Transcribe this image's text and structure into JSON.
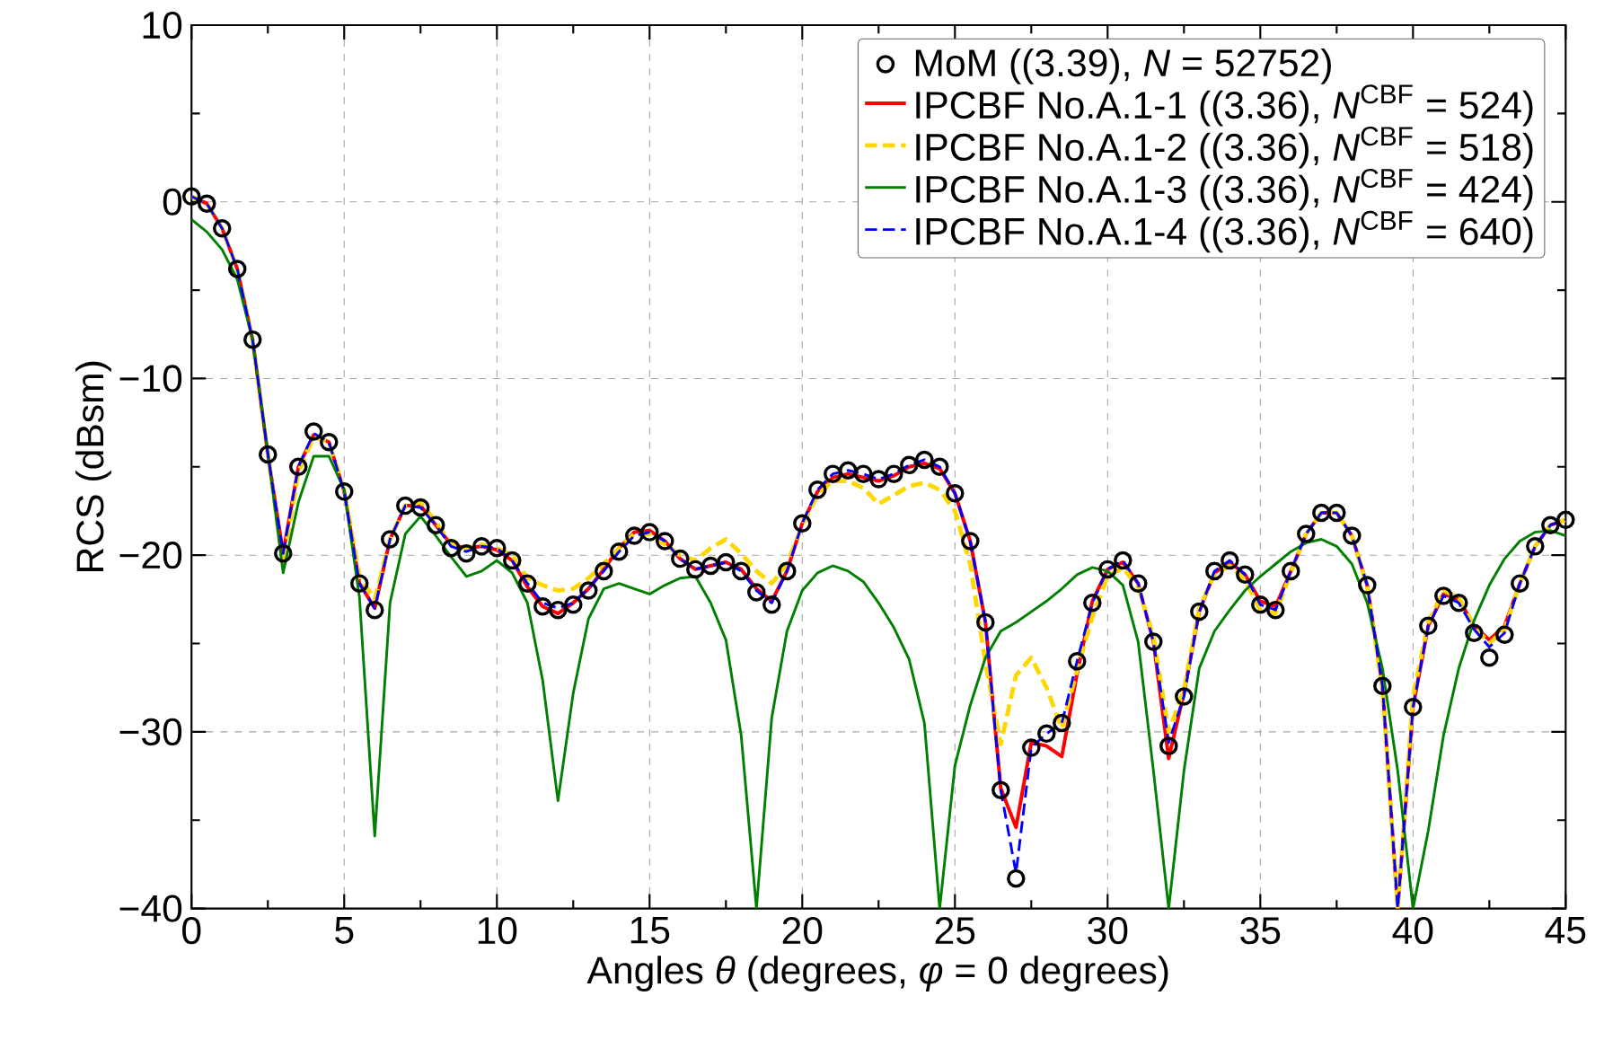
{
  "chart_data": {
    "type": "line",
    "xlabel": "Angles *θ* (degrees, *φ* = 0 degrees)",
    "ylabel": "RCS (dBsm)",
    "x": [
      0,
      0.5,
      1,
      1.5,
      2,
      2.5,
      3,
      3.5,
      4,
      4.5,
      5,
      5.5,
      6,
      6.5,
      7,
      7.5,
      8,
      8.5,
      9,
      9.5,
      10,
      10.5,
      11,
      11.5,
      12,
      12.5,
      13,
      13.5,
      14,
      14.5,
      15,
      15.5,
      16,
      16.5,
      17,
      17.5,
      18,
      18.5,
      19,
      19.5,
      20,
      20.5,
      21,
      21.5,
      22,
      22.5,
      23,
      23.5,
      24,
      24.5,
      25,
      25.5,
      26,
      26.5,
      27,
      27.5,
      28,
      28.5,
      29,
      29.5,
      30,
      30.5,
      31,
      31.5,
      32,
      32.5,
      33,
      33.5,
      34,
      34.5,
      35,
      35.5,
      36,
      36.5,
      37,
      37.5,
      38,
      38.5,
      39,
      39.5,
      40,
      40.5,
      41,
      41.5,
      42,
      42.5,
      43,
      43.5,
      44,
      44.5,
      45
    ],
    "series": [
      {
        "name": "MoM ((3.39), *N* = 52752)",
        "type": "scatter",
        "marker": "circle",
        "color": "#000000",
        "values": [
          0.3,
          -0.1,
          -1.5,
          -3.8,
          -7.8,
          -14.3,
          -19.9,
          -15.0,
          -13.0,
          -13.6,
          -16.4,
          -21.6,
          -23.1,
          -19.1,
          -17.2,
          -17.3,
          -18.3,
          -19.6,
          -19.9,
          -19.5,
          -19.6,
          -20.3,
          -21.6,
          -22.9,
          -23.1,
          -22.8,
          -22.0,
          -20.9,
          -19.8,
          -18.9,
          -18.7,
          -19.2,
          -20.2,
          -20.8,
          -20.6,
          -20.4,
          -20.9,
          -22.1,
          -22.8,
          -20.9,
          -18.2,
          -16.3,
          -15.4,
          -15.2,
          -15.4,
          -15.7,
          -15.4,
          -14.9,
          -14.6,
          -15.0,
          -16.5,
          -19.2,
          -23.8,
          -33.3,
          -38.3,
          -30.9,
          -30.1,
          -29.5,
          -26.0,
          -22.7,
          -20.8,
          -20.3,
          -21.6,
          -24.9,
          -30.8,
          -28.0,
          -23.2,
          -20.9,
          -20.3,
          -21.1,
          -22.8,
          -23.1,
          -20.9,
          -18.8,
          -17.6,
          -17.6,
          -18.9,
          -21.7,
          -27.4,
          null,
          -28.6,
          -24.0,
          -22.3,
          -22.7,
          -24.4,
          -25.8,
          -24.5,
          -21.6,
          -19.5,
          -18.3,
          -18.0
        ]
      },
      {
        "name": "IPCBF No.A.1-1 ((3.36), *N*$^{CBF}$ = 524)",
        "type": "line",
        "marker": "none",
        "line_style": "solid",
        "color": "#ff0000",
        "values": [
          0.3,
          -0.1,
          -1.5,
          -3.8,
          -7.8,
          -14.3,
          -19.9,
          -15.0,
          -13.2,
          -13.6,
          -16.4,
          -21.6,
          -23.0,
          -19.1,
          -17.2,
          -17.2,
          -18.3,
          -19.4,
          -19.6,
          -19.5,
          -19.7,
          -20.3,
          -21.8,
          -22.9,
          -23.3,
          -22.7,
          -21.9,
          -20.8,
          -19.6,
          -18.7,
          -18.6,
          -19.2,
          -20.2,
          -20.8,
          -20.6,
          -20.4,
          -20.8,
          -21.9,
          -22.6,
          -20.9,
          -18.2,
          -16.4,
          -15.6,
          -15.4,
          -15.6,
          -15.8,
          -15.5,
          -15.0,
          -14.8,
          -15.1,
          -16.5,
          -19.2,
          -23.8,
          -33.2,
          -35.4,
          -30.6,
          -30.8,
          -31.4,
          -26.7,
          -22.6,
          -20.8,
          -20.4,
          -21.6,
          -24.9,
          -31.5,
          -27.8,
          -23.2,
          -21.0,
          -20.4,
          -21.1,
          -22.6,
          -22.9,
          -20.9,
          -18.8,
          -17.6,
          -17.6,
          -18.9,
          -21.7,
          -27.4,
          -40,
          -28.6,
          -24.0,
          -22.2,
          -22.5,
          -24.0,
          -24.8,
          -24.0,
          -21.6,
          -19.5,
          -18.3,
          -18.0
        ]
      },
      {
        "name": "IPCBF No.A.1-2 ((3.36), *N*$^{CBF}$ = 518)",
        "type": "line",
        "marker": "none",
        "line_style": "dashed",
        "color": "#ffd700",
        "values": [
          0.3,
          -0.1,
          -1.5,
          -3.8,
          -7.8,
          -14.3,
          -20.5,
          -15.3,
          -13.3,
          -13.6,
          -16.3,
          -21.2,
          -22.5,
          -19.1,
          -17.2,
          -17.0,
          -18.1,
          -19.4,
          -19.6,
          -19.4,
          -19.6,
          -20.0,
          -21.3,
          -21.7,
          -22.0,
          -21.9,
          -21.3,
          -20.5,
          -19.6,
          -18.8,
          -18.8,
          -19.4,
          -20.0,
          -20.3,
          -19.6,
          -19.1,
          -19.9,
          -20.9,
          -21.6,
          -20.5,
          -18.3,
          -16.6,
          -15.8,
          -15.8,
          -16.2,
          -17.1,
          -16.6,
          -16.1,
          -15.9,
          -16.3,
          -17.5,
          -20.5,
          -26.1,
          -30.7,
          -26.8,
          -25.8,
          -27.5,
          -29.8,
          -26.5,
          -23.5,
          -21.2,
          -20.7,
          -21.8,
          -24.6,
          -30.0,
          -27.6,
          -23.0,
          -21.1,
          -20.6,
          -21.4,
          -23.1,
          -23.3,
          -21.0,
          -18.8,
          -17.6,
          -17.6,
          -18.9,
          -21.8,
          -27.6,
          -40,
          -28.0,
          -23.8,
          -22.0,
          -22.4,
          -24.0,
          -25.0,
          -24.2,
          -21.6,
          -19.5,
          -18.3,
          -18.0
        ]
      },
      {
        "name": "IPCBF No.A.1-3 ((3.36), *N*$^{CBF}$ = 424)",
        "type": "line",
        "marker": "none",
        "line_style": "solid",
        "color": "#008000",
        "values": [
          -1.0,
          -1.7,
          -2.7,
          -4.4,
          -7.8,
          -14.2,
          -21.0,
          -17.0,
          -14.4,
          -14.4,
          -16.3,
          -22.4,
          -35.9,
          -22.7,
          -18.8,
          -17.8,
          -18.9,
          -20.1,
          -21.2,
          -20.9,
          -20.3,
          -21.0,
          -22.7,
          -27.1,
          -33.9,
          -27.8,
          -23.6,
          -21.9,
          -21.6,
          -21.9,
          -22.2,
          -21.7,
          -21.3,
          -21.2,
          -22.7,
          -24.8,
          -30.2,
          -40,
          -29.2,
          -24.3,
          -22.0,
          -21.0,
          -20.6,
          -20.9,
          -21.5,
          -22.7,
          -24.1,
          -25.9,
          -29.5,
          -40,
          -31.9,
          -28.5,
          -25.8,
          -24.3,
          -23.8,
          -23.2,
          -22.6,
          -21.9,
          -21.1,
          -20.7,
          -20.9,
          -21.7,
          -24.9,
          -32.2,
          -40,
          -32.2,
          -26.4,
          -24.3,
          -23.1,
          -22.0,
          -21.2,
          -20.5,
          -19.8,
          -19.3,
          -19.1,
          -19.5,
          -20.5,
          -22.7,
          -26.4,
          -32.2,
          -40,
          -35.6,
          -30.2,
          -26.4,
          -23.7,
          -21.7,
          -20.2,
          -19.2,
          -18.7,
          -18.6,
          -18.9
        ]
      },
      {
        "name": "IPCBF No.A.1-4 ((3.36), *N*$^{CBF}$ = 640)",
        "type": "line",
        "marker": "none",
        "line_style": "dashed",
        "color": "#0000ff",
        "values": [
          0.3,
          -0.1,
          -1.5,
          -3.8,
          -7.8,
          -14.3,
          -19.9,
          -15.0,
          -13.1,
          -13.6,
          -16.4,
          -21.6,
          -23.0,
          -19.1,
          -17.2,
          -17.3,
          -18.3,
          -19.5,
          -19.8,
          -19.5,
          -19.6,
          -20.3,
          -21.6,
          -22.7,
          -23.0,
          -22.7,
          -21.9,
          -20.9,
          -19.8,
          -18.9,
          -18.7,
          -19.2,
          -20.2,
          -20.8,
          -20.6,
          -20.4,
          -20.9,
          -22.0,
          -22.7,
          -20.9,
          -18.2,
          -16.3,
          -15.4,
          -15.2,
          -15.4,
          -15.7,
          -15.4,
          -14.9,
          -14.6,
          -15.0,
          -16.5,
          -19.2,
          -23.8,
          -33.3,
          -38.0,
          -30.9,
          -30.1,
          -29.5,
          -26.0,
          -22.7,
          -20.8,
          -20.3,
          -21.6,
          -24.9,
          -30.6,
          -28.0,
          -23.2,
          -20.9,
          -20.3,
          -21.1,
          -22.8,
          -23.1,
          -20.9,
          -18.8,
          -17.6,
          -17.6,
          -18.9,
          -21.7,
          -27.4,
          -40,
          -28.6,
          -24.0,
          -22.3,
          -22.7,
          -24.2,
          -25.2,
          -24.4,
          -21.6,
          -19.5,
          -18.3,
          -18.0
        ]
      }
    ],
    "xlim": [
      0,
      45
    ],
    "ylim": [
      -40,
      10
    ],
    "xticks": [
      0,
      5,
      10,
      15,
      20,
      25,
      30,
      35,
      40,
      45
    ],
    "yticks": [
      {
        "value": -40,
        "label": "−40"
      },
      {
        "value": -30,
        "label": "−30"
      },
      {
        "value": -20,
        "label": "−20"
      },
      {
        "value": -10,
        "label": "−10"
      },
      0,
      10
    ],
    "grid": true,
    "legend": "top right"
  }
}
